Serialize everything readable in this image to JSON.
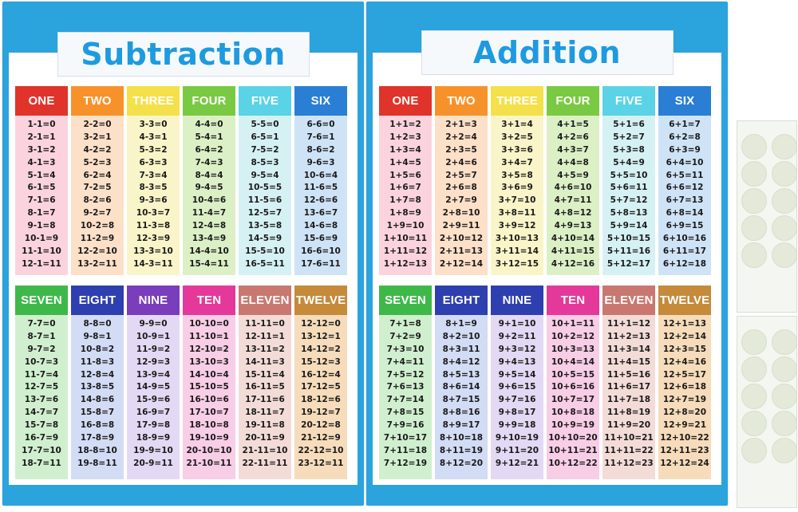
{
  "posters": [
    {
      "title": "Subtraction",
      "tables": [
        {
          "label": "ONE",
          "color": "#e0342b",
          "bg": "#fbd3df",
          "rows": [
            "1-1=0",
            "2-1=1",
            "3-1=2",
            "4-1=3",
            "5-1=4",
            "6-1=5",
            "7-1=6",
            "8-1=7",
            "9-1=8",
            "10-1=9",
            "11-1=10",
            "12-1=11"
          ]
        },
        {
          "label": "TWO",
          "color": "#f7922a",
          "bg": "#fde0c8",
          "rows": [
            "2-2=0",
            "3-2=1",
            "4-2=2",
            "5-2=3",
            "6-2=4",
            "7-2=5",
            "8-2=6",
            "9-2=7",
            "10-2=8",
            "11-2=9",
            "12-2=10",
            "13-2=11"
          ]
        },
        {
          "label": "THREE",
          "color": "#f4e04a",
          "bg": "#faf5c8",
          "rows": [
            "3-3=0",
            "4-3=1",
            "5-3=2",
            "6-3=3",
            "7-3=4",
            "8-3=5",
            "9-3=6",
            "10-3=7",
            "11-3=8",
            "12-3=9",
            "13-3=10",
            "14-3=11"
          ]
        },
        {
          "label": "FOUR",
          "color": "#7ac943",
          "bg": "#dcf0c6",
          "rows": [
            "4-4=0",
            "5-4=1",
            "6-4=2",
            "7-4=3",
            "8-4=4",
            "9-4=5",
            "10-4=6",
            "11-4=7",
            "12-4=8",
            "13-4=9",
            "14-4=10",
            "15-4=11"
          ]
        },
        {
          "label": "FIVE",
          "color": "#5ad3e6",
          "bg": "#d5f1f4",
          "rows": [
            "5-5=0",
            "6-5=1",
            "7-5=2",
            "8-5=3",
            "9-5=4",
            "10-5=5",
            "11-5=6",
            "12-5=7",
            "13-5=8",
            "14-5=9",
            "15-5=10",
            "16-5=11"
          ]
        },
        {
          "label": "SIX",
          "color": "#2a7fd4",
          "bg": "#cfe3f7",
          "rows": [
            "6-6=0",
            "7-6=1",
            "8-6=2",
            "9-6=3",
            "10-6=4",
            "11-6=5",
            "12-6=6",
            "13-6=7",
            "14-6=8",
            "15-6=9",
            "16-6=10",
            "17-6=11"
          ]
        },
        {
          "label": "SEVEN",
          "color": "#3fb84a",
          "bg": "#d0efcf",
          "rows": [
            "7-7=0",
            "8-7=1",
            "9-7=2",
            "10-7=3",
            "11-7=4",
            "12-7=5",
            "13-7=6",
            "14-7=7",
            "15-7=8",
            "16-7=9",
            "17-7=10",
            "18-7=11"
          ]
        },
        {
          "label": "EIGHT",
          "color": "#2e3fb0",
          "bg": "#d3dcf5",
          "rows": [
            "8-8=0",
            "9-8=1",
            "10-8=2",
            "11-8=3",
            "12-8=4",
            "13-8=5",
            "14-8=6",
            "15-8=7",
            "16-8=8",
            "17-8=9",
            "18-8=10",
            "19-8=11"
          ]
        },
        {
          "label": "NINE",
          "color": "#7a3dbb",
          "bg": "#e4d9f4",
          "rows": [
            "9-9=0",
            "10-9=1",
            "11-9=2",
            "12-9=3",
            "13-9=4",
            "14-9=5",
            "15-9=6",
            "16-9=7",
            "17-9=8",
            "18-9=9",
            "19-9=10",
            "20-9=11"
          ]
        },
        {
          "label": "TEN",
          "color": "#e4389a",
          "bg": "#f8cde6",
          "rows": [
            "10-10=0",
            "11-10=1",
            "12-10=2",
            "13-10=3",
            "14-10=4",
            "15-10=5",
            "16-10=6",
            "17-10=7",
            "18-10=8",
            "19-10=9",
            "20-10=10",
            "21-10=11"
          ]
        },
        {
          "label": "ELEVEN",
          "color": "#c9786f",
          "bg": "#f3dcd8",
          "rows": [
            "11-11=0",
            "12-11=1",
            "13-11=2",
            "14-11=3",
            "15-11=4",
            "16-11=5",
            "17-11=6",
            "18-11=7",
            "19-11=8",
            "20-11=9",
            "21-11=10",
            "22-11=11"
          ]
        },
        {
          "label": "TWELVE",
          "color": "#c58a3a",
          "bg": "#f6dcbb",
          "rows": [
            "12-12=0",
            "13-12=1",
            "14-12=2",
            "15-12=3",
            "16-12=4",
            "17-12=5",
            "18-12=6",
            "19-12=7",
            "20-12=8",
            "21-12=9",
            "22-12=10",
            "23-12=11"
          ]
        }
      ]
    },
    {
      "title": "Addition",
      "tables": [
        {
          "label": "ONE",
          "color": "#e0342b",
          "bg": "#fbd3df",
          "rows": [
            "1+1=2",
            "1+2=3",
            "1+3=4",
            "1+4=5",
            "1+5=6",
            "1+6=7",
            "1+7=8",
            "1+8=9",
            "1+9=10",
            "1+10=11",
            "1+11=12",
            "1+12=13"
          ]
        },
        {
          "label": "TWO",
          "color": "#f7922a",
          "bg": "#fde0c8",
          "rows": [
            "2+1=3",
            "2+2=4",
            "2+3=5",
            "2+4=6",
            "2+5=7",
            "2+6=8",
            "2+7=9",
            "2+8=10",
            "2+9=11",
            "2+10=12",
            "2+11=13",
            "2+12=14"
          ]
        },
        {
          "label": "THREE",
          "color": "#f4e04a",
          "bg": "#faf5c8",
          "rows": [
            "3+1=4",
            "3+2=5",
            "3+3=6",
            "3+4=7",
            "3+5=8",
            "3+6=9",
            "3+7=10",
            "3+8=11",
            "3+9=12",
            "3+10=13",
            "3+11=14",
            "3+12=15"
          ]
        },
        {
          "label": "FOUR",
          "color": "#7ac943",
          "bg": "#dcf0c6",
          "rows": [
            "4+1=5",
            "4+2=6",
            "4+3=7",
            "4+4=8",
            "4+5=9",
            "4+6=10",
            "4+7=11",
            "4+8=12",
            "4+9=13",
            "4+10=14",
            "4+11=15",
            "4+12=16"
          ]
        },
        {
          "label": "FIVE",
          "color": "#5ad3e6",
          "bg": "#d5f1f4",
          "rows": [
            "5+1=6",
            "5+2=7",
            "5+3=8",
            "5+4=9",
            "5+5=10",
            "5+6=11",
            "5+7=12",
            "5+8=13",
            "5+9=14",
            "5+10=15",
            "5+11=16",
            "5+12=17"
          ]
        },
        {
          "label": "SIX",
          "color": "#2a7fd4",
          "bg": "#cfe3f7",
          "rows": [
            "6+1=7",
            "6+2=8",
            "6+3=9",
            "6+4=10",
            "6+5=11",
            "6+6=12",
            "6+7=13",
            "6+8=14",
            "6+9=15",
            "6+10=16",
            "6+11=17",
            "6+12=18"
          ]
        },
        {
          "label": "SEVEN",
          "color": "#3fb84a",
          "bg": "#d0efcf",
          "rows": [
            "7+1=8",
            "7+2=9",
            "7+3=10",
            "7+4=11",
            "7+5=12",
            "7+6=13",
            "7+7=14",
            "7+8=15",
            "7+9=16",
            "7+10=17",
            "7+11=18",
            "7+12=19"
          ]
        },
        {
          "label": "EIGHT",
          "color": "#2e3fb0",
          "bg": "#d3dcf5",
          "rows": [
            "8+1=9",
            "8+2=10",
            "8+3=11",
            "8+4=12",
            "8+5=13",
            "8+6=14",
            "8+7=15",
            "8+8=16",
            "8+9=17",
            "8+10=18",
            "8+11=19",
            "8+12=20"
          ]
        },
        {
          "label": "NINE",
          "color": "#2e3fb0",
          "bg": "#e4d9f4",
          "rows": [
            "9+1=10",
            "9+2=11",
            "9+3=12",
            "9+4=13",
            "9+5=14",
            "9+6=15",
            "9+7=16",
            "9+8=17",
            "9+9=18",
            "9+10=19",
            "9+11=20",
            "9+12=21"
          ]
        },
        {
          "label": "TEN",
          "color": "#e4389a",
          "bg": "#f8cde6",
          "rows": [
            "10+1=11",
            "10+2=12",
            "10+3=13",
            "10+4=14",
            "10+5=15",
            "10+6=16",
            "10+7=17",
            "10+8=18",
            "10+9=19",
            "10+10=20",
            "10+11=21",
            "10+12=22"
          ]
        },
        {
          "label": "ELEVEN",
          "color": "#c9786f",
          "bg": "#f3dcd8",
          "rows": [
            "11+1=12",
            "11+2=13",
            "11+3=14",
            "11+4=15",
            "11+5=16",
            "11+6=17",
            "11+7=18",
            "11+8=19",
            "11+9=20",
            "11+10=21",
            "11+11=22",
            "11+12=23"
          ]
        },
        {
          "label": "TWELVE",
          "color": "#c58a3a",
          "bg": "#f6dcbb",
          "rows": [
            "12+1=13",
            "12+2=14",
            "12+3=15",
            "12+4=16",
            "12+5=17",
            "12+6=18",
            "12+7=19",
            "12+8=20",
            "12+9=21",
            "12+10=22",
            "12+11=23",
            "12+12=24"
          ]
        }
      ]
    }
  ],
  "adhesive_sheets": {
    "count": 2,
    "dots_per_sheet": 10,
    "dot_color": "#e3ead9"
  }
}
